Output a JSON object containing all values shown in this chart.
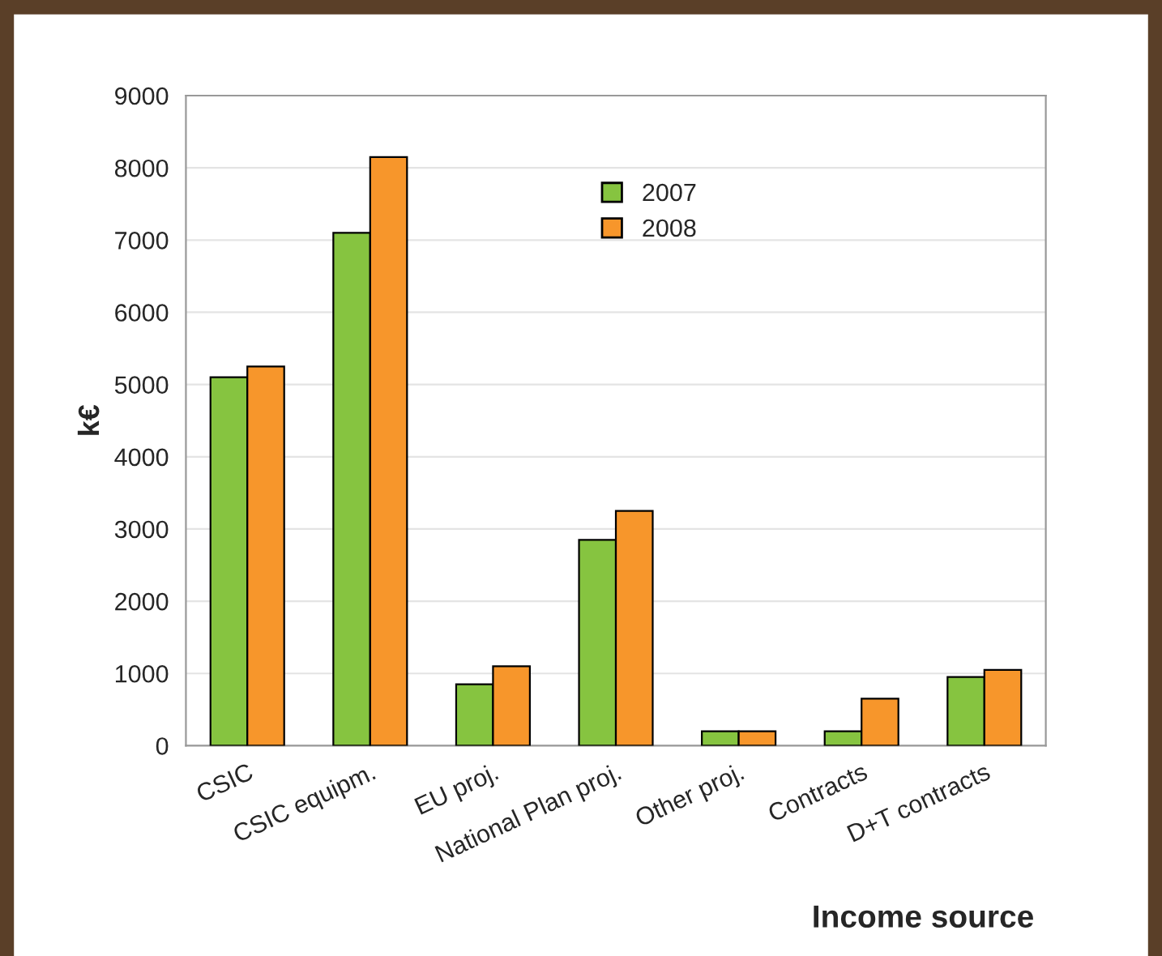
{
  "chart_data": {
    "type": "bar",
    "categories": [
      "CSIC",
      "CSIC equipm.",
      "EU proj.",
      "National Plan proj.",
      "Other proj.",
      "Contracts",
      "D+T contracts"
    ],
    "series": [
      {
        "name": "2007",
        "color": "#86c440",
        "values": [
          5100,
          7100,
          850,
          2850,
          200,
          200,
          950
        ]
      },
      {
        "name": "2008",
        "color": "#f7962b",
        "values": [
          5250,
          8150,
          1100,
          3250,
          200,
          650,
          1050
        ]
      }
    ],
    "xlabel": "Income source",
    "ylabel": "k€",
    "ylim": [
      0,
      9000
    ],
    "yticks": [
      0,
      1000,
      2000,
      3000,
      4000,
      5000,
      6000,
      7000,
      8000,
      9000
    ],
    "grid": "y",
    "legend": "top right"
  }
}
